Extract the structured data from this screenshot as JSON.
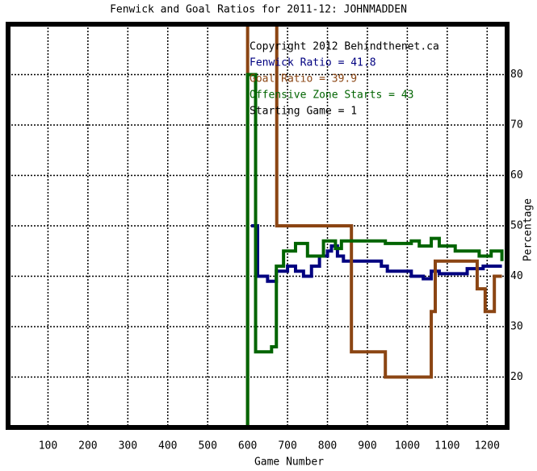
{
  "chart_data": {
    "type": "line",
    "title": "Fenwick and Goal Ratios for 2011-12: JOHNMADDEN",
    "x_label": "Game Number",
    "y_label": "Percentage",
    "xlim": [
      0,
      1250
    ],
    "ylim": [
      10,
      90
    ],
    "xticks": [
      100,
      200,
      300,
      400,
      500,
      600,
      700,
      800,
      900,
      1000,
      1100,
      1200
    ],
    "yticks": [
      20,
      30,
      40,
      50,
      60,
      70,
      80
    ],
    "grid": true,
    "annotations": [
      {
        "text": "Copyright 2012 Behindthenet.ca",
        "color": "#000000"
      },
      {
        "text": "Fenwick Ratio = 41.8",
        "color": "#000080"
      },
      {
        "text": "Goal Ratio = 39.9",
        "color": "#8b4513"
      },
      {
        "text": "Offensive Zone Starts = 43",
        "color": "#006400"
      },
      {
        "text": "Starting Game = 1",
        "color": "#000000"
      }
    ],
    "series": [
      {
        "color": "#000080",
        "x": [
          609,
          625,
          625,
          650,
          650,
          672,
          672,
          700,
          700,
          720,
          720,
          740,
          740,
          760,
          760,
          780,
          780,
          800,
          800,
          810,
          810,
          825,
          825,
          840,
          840,
          935,
          935,
          950,
          950,
          1010,
          1010,
          1040,
          1040,
          1060,
          1060,
          1080,
          1080,
          1150,
          1150,
          1190,
          1190,
          1237
        ],
        "values": [
          50,
          50,
          40,
          40,
          39,
          39,
          41,
          41,
          42,
          42,
          41,
          41,
          40,
          40,
          42,
          42,
          44,
          44,
          45,
          45,
          46,
          46,
          44,
          44,
          43,
          43,
          42,
          42,
          41,
          41,
          40,
          40,
          39.5,
          39.5,
          41,
          41,
          40.5,
          40.5,
          41.5,
          41.5,
          42,
          42
        ]
      },
      {
        "color": "#8b4513",
        "x": [
          600,
          600,
          673,
          673,
          860,
          860,
          945,
          945,
          1060,
          1060,
          1070,
          1070,
          1175,
          1175,
          1195,
          1195,
          1218,
          1218,
          1237
        ],
        "values": [
          0,
          100,
          100,
          50,
          50,
          25,
          25,
          20,
          20,
          33,
          33,
          43,
          43,
          37.5,
          37.5,
          33,
          33,
          40,
          40
        ]
      },
      {
        "color": "#006400",
        "x": [
          600,
          600,
          620,
          620,
          660,
          660,
          672,
          672,
          690,
          690,
          720,
          720,
          750,
          750,
          790,
          790,
          820,
          820,
          835,
          835,
          945,
          945,
          1010,
          1010,
          1030,
          1030,
          1060,
          1060,
          1080,
          1080,
          1120,
          1120,
          1180,
          1180,
          1210,
          1210,
          1237,
          1237
        ],
        "values": [
          0,
          80,
          80,
          25,
          25,
          26,
          26,
          42,
          42,
          45,
          45,
          46.5,
          46.5,
          44,
          44,
          47,
          47,
          45.5,
          45.5,
          47,
          47,
          46.5,
          46.5,
          47,
          47,
          46,
          46,
          47.5,
          47.5,
          46,
          46,
          45,
          45,
          44,
          44,
          45,
          45,
          43
        ]
      }
    ]
  }
}
